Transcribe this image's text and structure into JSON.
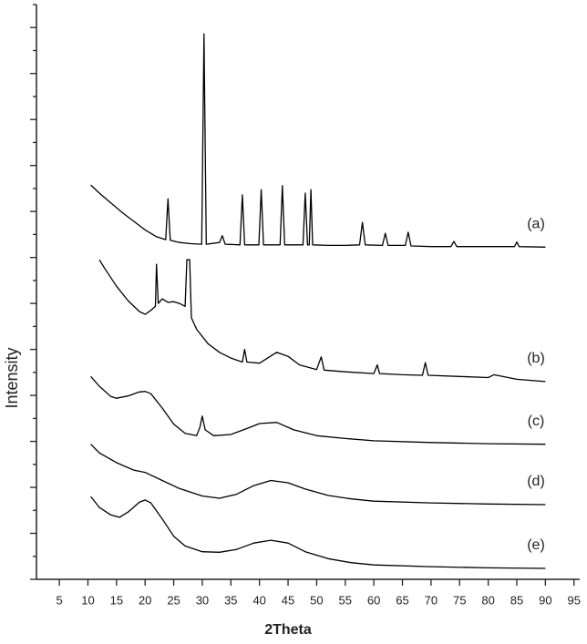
{
  "chart_data": {
    "type": "line",
    "xlabel": "2Theta",
    "ylabel": "Intensity",
    "xlim": [
      1,
      96
    ],
    "xticks": [
      5,
      10,
      15,
      20,
      25,
      30,
      35,
      40,
      45,
      50,
      55,
      60,
      65,
      70,
      75,
      80,
      85,
      90,
      95
    ],
    "ylim": [
      0,
      100
    ],
    "yticks": [
      0,
      4,
      8,
      12,
      16,
      20,
      24,
      28,
      32,
      36,
      40,
      44,
      48,
      52,
      56,
      60,
      64,
      68,
      72,
      76,
      80,
      84,
      88,
      92,
      96,
      100
    ],
    "series": [
      {
        "name": "(a)",
        "color": "#000000",
        "x": [
          10.5,
          12,
          14,
          16,
          18,
          20,
          22,
          23.6,
          24,
          24.4,
          26,
          28,
          29.9,
          30.3,
          30.7,
          33,
          33.5,
          34,
          36.6,
          37,
          37.4,
          39.9,
          40.3,
          40.7,
          43.6,
          44,
          44.4,
          47.6,
          48,
          48.4,
          48.7,
          49,
          49.3,
          52,
          55,
          57.5,
          58,
          58.5,
          61.5,
          62,
          62.5,
          65.5,
          66,
          66.5,
          70,
          73.5,
          74,
          74.5,
          78,
          84.6,
          85,
          85.4,
          90
        ],
        "values": [
          68.6,
          67.2,
          65.5,
          63.8,
          62.3,
          60.8,
          59.6,
          59.1,
          66.2,
          59.0,
          58.6,
          58.4,
          58.3,
          94.9,
          58.3,
          58.6,
          59.8,
          58.3,
          58.2,
          66.9,
          58.2,
          58.2,
          67.8,
          58.2,
          58.2,
          68.5,
          58.2,
          58.2,
          67.2,
          58.2,
          58.2,
          67.8,
          58.2,
          58.1,
          58.1,
          58.2,
          62.1,
          58.2,
          58.1,
          60.2,
          58.1,
          58.1,
          60.4,
          58.0,
          57.9,
          57.9,
          58.8,
          57.9,
          57.9,
          57.9,
          58.7,
          57.9,
          57.8
        ]
      },
      {
        "name": "(b)",
        "color": "#000000",
        "x": [
          12,
          13,
          15,
          17,
          19,
          20,
          21,
          21.8,
          22,
          22.3,
          23,
          24,
          25,
          26,
          27,
          27.3,
          27.8,
          28.1,
          29,
          31,
          33,
          35,
          37,
          37.4,
          37.8,
          40,
          43,
          45,
          47,
          50,
          50.8,
          51.3,
          55,
          60,
          60.6,
          61,
          65,
          68.5,
          69,
          69.5,
          75,
          80,
          81,
          85,
          90
        ],
        "values": [
          55.6,
          54.0,
          51.0,
          48.5,
          46.6,
          46.1,
          46.8,
          47.5,
          54.8,
          48.0,
          48.8,
          48.2,
          48.3,
          48.0,
          47.5,
          55.6,
          55.6,
          45.5,
          43.5,
          41.0,
          39.5,
          38.5,
          37.8,
          40.0,
          37.8,
          37.6,
          39.5,
          38.8,
          37.3,
          36.5,
          38.7,
          36.4,
          36.1,
          35.8,
          37.3,
          35.8,
          35.6,
          35.5,
          37.7,
          35.5,
          35.3,
          35.1,
          35.6,
          34.8,
          34.4
        ]
      },
      {
        "name": "(c)",
        "color": "#000000",
        "x": [
          10.5,
          12,
          14,
          15,
          17,
          19,
          20,
          21,
          23,
          25,
          27,
          29,
          29.6,
          30,
          30.5,
          32,
          35,
          38,
          40,
          43,
          46,
          50,
          55,
          60,
          70,
          80,
          90
        ],
        "values": [
          35.3,
          33.6,
          31.8,
          31.5,
          31.9,
          32.6,
          32.7,
          32.3,
          29.8,
          27.0,
          25.4,
          25.0,
          26.5,
          28.4,
          26.0,
          25.0,
          25.2,
          26.3,
          27.1,
          27.3,
          26.0,
          25.0,
          24.5,
          24.1,
          23.8,
          23.6,
          23.5
        ]
      },
      {
        "name": "(d)",
        "color": "#000000",
        "x": [
          10.5,
          12,
          15,
          18,
          20,
          23,
          26,
          30,
          33,
          36,
          39,
          42,
          45,
          48,
          52,
          56,
          60,
          70,
          80,
          90
        ],
        "values": [
          23.5,
          22.0,
          20.3,
          19.0,
          18.6,
          17.2,
          15.8,
          14.5,
          14.1,
          14.8,
          16.3,
          17.2,
          16.8,
          15.7,
          14.6,
          14.0,
          13.6,
          13.3,
          13.1,
          13.0
        ]
      },
      {
        "name": "(e)",
        "color": "#000000",
        "x": [
          10.5,
          12,
          14,
          15.5,
          17,
          19,
          20,
          21,
          23,
          25,
          27,
          30,
          33,
          36,
          39,
          42,
          45,
          48,
          52,
          56,
          60,
          70,
          80,
          90
        ],
        "values": [
          14.4,
          12.5,
          11.2,
          10.8,
          11.7,
          13.4,
          13.8,
          13.3,
          10.5,
          7.5,
          5.8,
          4.8,
          4.7,
          5.2,
          6.3,
          6.8,
          6.3,
          4.8,
          3.6,
          2.9,
          2.5,
          2.2,
          2.0,
          1.9
        ]
      }
    ]
  }
}
